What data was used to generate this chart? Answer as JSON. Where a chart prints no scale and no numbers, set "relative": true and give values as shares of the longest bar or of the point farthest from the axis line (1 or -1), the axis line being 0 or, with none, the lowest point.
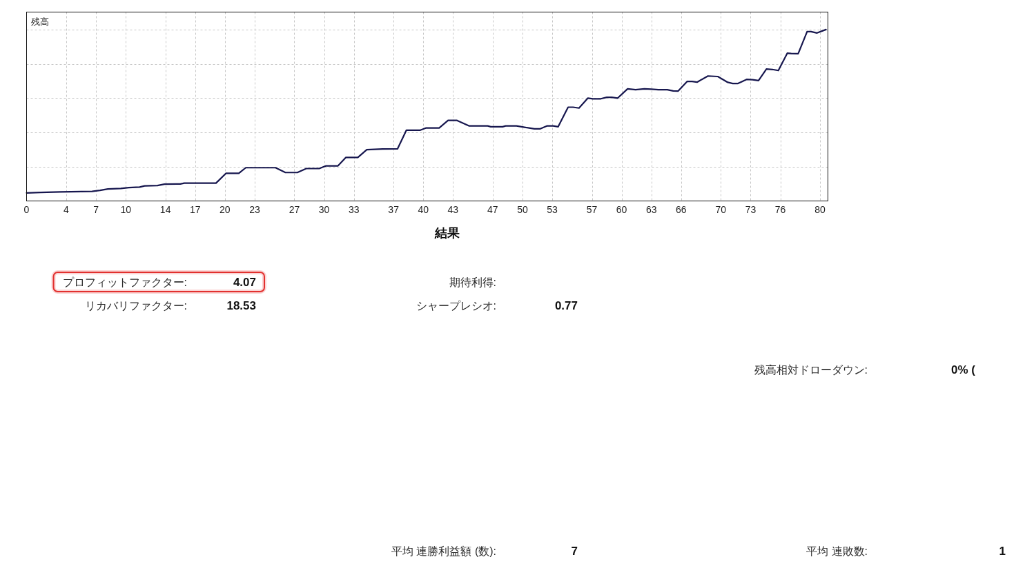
{
  "chart_data": [
    {
      "type": "line",
      "title": "残高",
      "relative": true,
      "color": "#16164e",
      "grid": true,
      "tick_labels": "x",
      "xlim": [
        0,
        80.8
      ],
      "xticks": [
        0,
        4,
        7,
        10,
        14,
        17,
        20,
        23,
        27,
        30,
        33,
        37,
        40,
        43,
        47,
        50,
        53,
        57,
        60,
        63,
        66,
        70,
        73,
        76,
        80
      ],
      "x": [
        0,
        1.4,
        3.4,
        6.6,
        7.4,
        8.2,
        9.5,
        10.3,
        11.4,
        11.9,
        13.2,
        13.9,
        15.5,
        15.9,
        19.1,
        20.1,
        21.4,
        22.1,
        25.1,
        26.1,
        27.3,
        28.2,
        29.5,
        30.2,
        31.4,
        32.2,
        33.4,
        34.3,
        35.9,
        37.4,
        38.3,
        39.7,
        40.3,
        41.6,
        42.5,
        43.4,
        44.6,
        46.5,
        46.8,
        48.0,
        48.3,
        49.4,
        50.3,
        51.2,
        51.8,
        52.5,
        53.1,
        53.6,
        54.6,
        55.1,
        55.7,
        56.6,
        57.1,
        57.9,
        58.5,
        59.0,
        59.6,
        60.6,
        61.4,
        62.3,
        63.0,
        63.7,
        64.6,
        65.2,
        65.7,
        66.6,
        67.1,
        67.6,
        68.7,
        69.7,
        70.7,
        71.2,
        71.7,
        72.6,
        73.2,
        73.8,
        74.6,
        75.2,
        75.8,
        76.7,
        77.1,
        77.8,
        78.7,
        79.1,
        79.7,
        80.6
      ],
      "values": [
        0.047,
        0.05,
        0.053,
        0.056,
        0.062,
        0.07,
        0.073,
        0.078,
        0.081,
        0.088,
        0.09,
        0.098,
        0.099,
        0.104,
        0.104,
        0.161,
        0.161,
        0.194,
        0.194,
        0.166,
        0.166,
        0.189,
        0.189,
        0.205,
        0.205,
        0.254,
        0.254,
        0.299,
        0.303,
        0.304,
        0.413,
        0.413,
        0.426,
        0.426,
        0.47,
        0.47,
        0.438,
        0.438,
        0.433,
        0.433,
        0.438,
        0.438,
        0.429,
        0.421,
        0.421,
        0.438,
        0.438,
        0.433,
        0.547,
        0.547,
        0.542,
        0.6,
        0.596,
        0.596,
        0.605,
        0.605,
        0.6,
        0.654,
        0.649,
        0.654,
        0.652,
        0.649,
        0.649,
        0.642,
        0.641,
        0.697,
        0.697,
        0.693,
        0.729,
        0.726,
        0.692,
        0.685,
        0.685,
        0.709,
        0.707,
        0.702,
        0.77,
        0.767,
        0.761,
        0.862,
        0.86,
        0.859,
        0.988,
        0.988,
        0.98,
        1.0
      ]
    },
    {
      "type": "other",
      "title": "結果",
      "annotations": [
        "プロフィットファクター:",
        "4.07",
        "期待利得:",
        "リカバリファクター:",
        "18.53",
        "シャープレシオ:",
        "0.77",
        "残高相対ドローダウン:",
        "0% (",
        "平均 連勝利益額 (数):",
        "7",
        "平均 連敗数:",
        "1"
      ]
    }
  ]
}
